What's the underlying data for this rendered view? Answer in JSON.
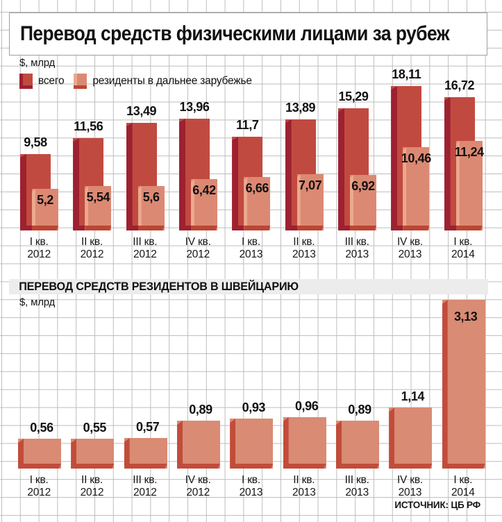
{
  "title": "Перевод средств физическими лицами за рубеж",
  "source": "ИСТОЧНИК: ЦБ РФ",
  "legend": [
    {
      "label": "всего",
      "color": "#c14a40"
    },
    {
      "label": "резиденты в дальнее зарубежье",
      "color": "#dc8973"
    }
  ],
  "colors": {
    "total_fill": "#c14a40",
    "total_shadow": "#9d2130",
    "residents_fill": "#dc8973",
    "residents_highlight": "#eba98d",
    "residents_shadow": "#bc4634",
    "swiss_fill": "#d98b74",
    "swiss_shadow": "#c24c3a",
    "grid_line": "#bdbdbd",
    "section_band": "#ececec",
    "text": "#111111"
  },
  "chart_data": [
    {
      "type": "bar",
      "title": "Перевод средств физическими лицами за рубеж",
      "unit": "$, млрд",
      "grid": true,
      "legend_position": "top-left",
      "ylim": [
        0,
        19
      ],
      "categories": [
        "I кв. 2012",
        "II кв. 2012",
        "III кв. 2012",
        "IV кв. 2012",
        "I кв. 2013",
        "II кв. 2013",
        "III кв. 2013",
        "IV кв. 2013",
        "I кв. 2014"
      ],
      "categories_two_line": [
        {
          "quarter": "I кв.",
          "year": "2012"
        },
        {
          "quarter": "II кв.",
          "year": "2012"
        },
        {
          "quarter": "III кв.",
          "year": "2012"
        },
        {
          "quarter": "IV кв.",
          "year": "2012"
        },
        {
          "quarter": "I кв.",
          "year": "2013"
        },
        {
          "quarter": "II кв.",
          "year": "2013"
        },
        {
          "quarter": "III кв.",
          "year": "2013"
        },
        {
          "quarter": "IV кв.",
          "year": "2013"
        },
        {
          "quarter": "I кв.",
          "year": "2014"
        }
      ],
      "series": [
        {
          "name": "всего",
          "values": [
            9.58,
            11.56,
            13.49,
            13.96,
            11.7,
            13.89,
            15.29,
            18.11,
            16.72
          ],
          "labels": [
            "9,58",
            "11,56",
            "13,49",
            "13,96",
            "11,7",
            "13,89",
            "15,29",
            "18,11",
            "16,72"
          ]
        },
        {
          "name": "резиденты в дальнее зарубежье",
          "values": [
            5.2,
            5.54,
            5.6,
            6.42,
            6.66,
            7.07,
            6.92,
            10.46,
            11.24
          ],
          "labels": [
            "5,2",
            "5,54",
            "5,6",
            "6,42",
            "6,66",
            "7,07",
            "6,92",
            "10,46",
            "11,24"
          ]
        }
      ]
    },
    {
      "type": "bar",
      "title": "ПЕРЕВОД СРЕДСТВ РЕЗИДЕНТОВ В ШВЕЙЦАРИЮ",
      "unit": "$, млрд",
      "grid": true,
      "ylim": [
        0,
        3.3
      ],
      "categories": [
        "I кв. 2012",
        "II кв. 2012",
        "III кв. 2012",
        "IV кв. 2012",
        "I кв. 2013",
        "II кв. 2013",
        "III кв. 2013",
        "IV кв. 2013",
        "I кв. 2014"
      ],
      "categories_two_line": [
        {
          "quarter": "I кв.",
          "year": "2012"
        },
        {
          "quarter": "II кв.",
          "year": "2012"
        },
        {
          "quarter": "III кв.",
          "year": "2012"
        },
        {
          "quarter": "IV кв.",
          "year": "2012"
        },
        {
          "quarter": "I кв.",
          "year": "2013"
        },
        {
          "quarter": "II кв.",
          "year": "2013"
        },
        {
          "quarter": "III кв.",
          "year": "2013"
        },
        {
          "quarter": "IV кв.",
          "year": "2013"
        },
        {
          "quarter": "I кв.",
          "year": "2014"
        }
      ],
      "series": [
        {
          "values": [
            0.56,
            0.55,
            0.57,
            0.89,
            0.93,
            0.96,
            0.89,
            1.14,
            3.13
          ],
          "labels": [
            "0,56",
            "0,55",
            "0,57",
            "0,89",
            "0,93",
            "0,96",
            "0,89",
            "1,14",
            "3,13"
          ]
        }
      ]
    }
  ]
}
